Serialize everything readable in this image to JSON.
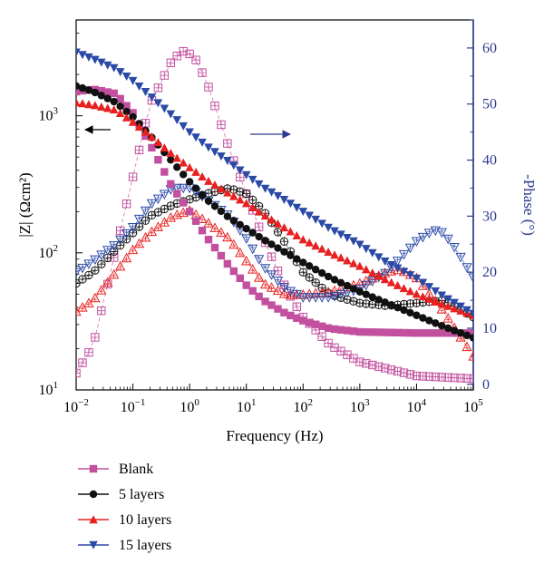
{
  "chart_data": {
    "type": "scatter",
    "xlabel": "Frequency (Hz)",
    "ylabel_left": "|Z| (Ωcm²)",
    "ylabel_right": "-Phase (°)",
    "x_scale": "log",
    "x_range": [
      0.01,
      100000
    ],
    "y_left_scale": "log",
    "y_left_range": [
      10,
      5000
    ],
    "y_right_range": [
      -1,
      65
    ],
    "x_ticks": [
      {
        "base": "10",
        "exp": "−2",
        "value": 0.01
      },
      {
        "base": "10",
        "exp": "−1",
        "value": 0.1
      },
      {
        "base": "10",
        "exp": "0",
        "value": 1
      },
      {
        "base": "10",
        "exp": "1",
        "value": 10
      },
      {
        "base": "10",
        "exp": "2",
        "value": 100
      },
      {
        "base": "10",
        "exp": "3",
        "value": 1000
      },
      {
        "base": "10",
        "exp": "4",
        "value": 10000
      },
      {
        "base": "10",
        "exp": "5",
        "value": 100000
      }
    ],
    "y_left_ticks": [
      {
        "base": "10",
        "exp": "1",
        "value": 10
      },
      {
        "base": "10",
        "exp": "2",
        "value": 100
      },
      {
        "base": "10",
        "exp": "3",
        "value": 1000
      }
    ],
    "y_right_ticks": [
      0,
      10,
      20,
      30,
      40,
      50,
      60
    ],
    "legend_position": "bottom-left",
    "series": [
      {
        "name": "Blank",
        "color": "#c2509f",
        "marker_magnitude": "filled-square",
        "marker_phase": "open-square-plus",
        "magnitude": [
          [
            0.01,
            1500
          ],
          [
            0.02,
            1560
          ],
          [
            0.05,
            1450
          ],
          [
            0.1,
            1050
          ],
          [
            0.2,
            620
          ],
          [
            0.5,
            300
          ],
          [
            1,
            200
          ],
          [
            2,
            130
          ],
          [
            5,
            80
          ],
          [
            10,
            58
          ],
          [
            20,
            45
          ],
          [
            50,
            36
          ],
          [
            100,
            32
          ],
          [
            300,
            28
          ],
          [
            1000,
            26.5
          ],
          [
            10000,
            26
          ],
          [
            100000,
            26
          ]
        ],
        "phase": [
          [
            0.01,
            2
          ],
          [
            0.02,
            7
          ],
          [
            0.05,
            24
          ],
          [
            0.1,
            37
          ],
          [
            0.2,
            50
          ],
          [
            0.5,
            58
          ],
          [
            0.8,
            59.5
          ],
          [
            1.2,
            58.5
          ],
          [
            2,
            54
          ],
          [
            5,
            42
          ],
          [
            10,
            34
          ],
          [
            20,
            26
          ],
          [
            50,
            17
          ],
          [
            100,
            12
          ],
          [
            300,
            7
          ],
          [
            1000,
            4
          ],
          [
            10000,
            1.5
          ],
          [
            100000,
            1
          ]
        ]
      },
      {
        "name": "5 layers",
        "color": "#111111",
        "marker_magnitude": "filled-circle",
        "marker_phase": "open-circle-plus",
        "magnitude": [
          [
            0.01,
            1650
          ],
          [
            0.02,
            1500
          ],
          [
            0.05,
            1250
          ],
          [
            0.1,
            980
          ],
          [
            0.2,
            720
          ],
          [
            0.5,
            460
          ],
          [
            1,
            330
          ],
          [
            2,
            245
          ],
          [
            5,
            180
          ],
          [
            10,
            150
          ],
          [
            20,
            125
          ],
          [
            50,
            100
          ],
          [
            100,
            85
          ],
          [
            300,
            66
          ],
          [
            1000,
            52
          ],
          [
            3000,
            43
          ],
          [
            10000,
            35
          ],
          [
            30000,
            29
          ],
          [
            100000,
            24
          ]
        ],
        "phase": [
          [
            0.01,
            18
          ],
          [
            0.02,
            20
          ],
          [
            0.05,
            24
          ],
          [
            0.1,
            27
          ],
          [
            0.2,
            30
          ],
          [
            0.5,
            32
          ],
          [
            1,
            33
          ],
          [
            2,
            34
          ],
          [
            5,
            35
          ],
          [
            10,
            34
          ],
          [
            20,
            31
          ],
          [
            50,
            25
          ],
          [
            100,
            20
          ],
          [
            300,
            16
          ],
          [
            1000,
            14.5
          ],
          [
            3000,
            14
          ],
          [
            10000,
            14.5
          ],
          [
            30000,
            15
          ],
          [
            100000,
            12
          ]
        ]
      },
      {
        "name": "10 layers",
        "color": "#e8201f",
        "marker_magnitude": "filled-triangle-up",
        "marker_phase": "open-triangle-up",
        "magnitude": [
          [
            0.01,
            1250
          ],
          [
            0.02,
            1200
          ],
          [
            0.05,
            1100
          ],
          [
            0.1,
            900
          ],
          [
            0.2,
            720
          ],
          [
            0.5,
            520
          ],
          [
            1,
            420
          ],
          [
            2,
            340
          ],
          [
            5,
            270
          ],
          [
            10,
            230
          ],
          [
            20,
            190
          ],
          [
            50,
            150
          ],
          [
            100,
            125
          ],
          [
            300,
            100
          ],
          [
            1000,
            80
          ],
          [
            3000,
            63
          ],
          [
            10000,
            50
          ],
          [
            30000,
            42
          ],
          [
            100000,
            35
          ]
        ],
        "phase": [
          [
            0.01,
            13
          ],
          [
            0.02,
            15
          ],
          [
            0.05,
            20
          ],
          [
            0.1,
            24
          ],
          [
            0.2,
            27
          ],
          [
            0.5,
            30
          ],
          [
            1,
            31
          ],
          [
            2,
            29
          ],
          [
            5,
            26
          ],
          [
            10,
            22
          ],
          [
            20,
            18
          ],
          [
            50,
            16
          ],
          [
            100,
            16
          ],
          [
            300,
            16.5
          ],
          [
            1000,
            18
          ],
          [
            3000,
            20
          ],
          [
            5000,
            20.5
          ],
          [
            10000,
            19
          ],
          [
            30000,
            13
          ],
          [
            100000,
            5
          ]
        ]
      },
      {
        "name": "15 layers",
        "color": "#2b4aa6",
        "marker_magnitude": "filled-triangle-down",
        "marker_phase": "open-triangle-down",
        "magnitude": [
          [
            0.01,
            2900
          ],
          [
            0.02,
            2600
          ],
          [
            0.05,
            2200
          ],
          [
            0.1,
            1800
          ],
          [
            0.2,
            1400
          ],
          [
            0.5,
            1000
          ],
          [
            1,
            760
          ],
          [
            2,
            600
          ],
          [
            5,
            460
          ],
          [
            10,
            370
          ],
          [
            20,
            300
          ],
          [
            50,
            240
          ],
          [
            100,
            200
          ],
          [
            300,
            150
          ],
          [
            1000,
            115
          ],
          [
            3000,
            85
          ],
          [
            10000,
            65
          ],
          [
            30000,
            48
          ],
          [
            100000,
            36
          ]
        ],
        "phase": [
          [
            0.01,
            20
          ],
          [
            0.02,
            22
          ],
          [
            0.05,
            25
          ],
          [
            0.1,
            28
          ],
          [
            0.2,
            32
          ],
          [
            0.5,
            35
          ],
          [
            1,
            35
          ],
          [
            2,
            33
          ],
          [
            5,
            30
          ],
          [
            10,
            26
          ],
          [
            20,
            21
          ],
          [
            50,
            17
          ],
          [
            100,
            15.5
          ],
          [
            300,
            15.5
          ],
          [
            1000,
            17
          ],
          [
            3000,
            20
          ],
          [
            10000,
            25.5
          ],
          [
            20000,
            27.5
          ],
          [
            30000,
            27
          ],
          [
            50000,
            24
          ],
          [
            100000,
            19
          ]
        ]
      }
    ]
  }
}
